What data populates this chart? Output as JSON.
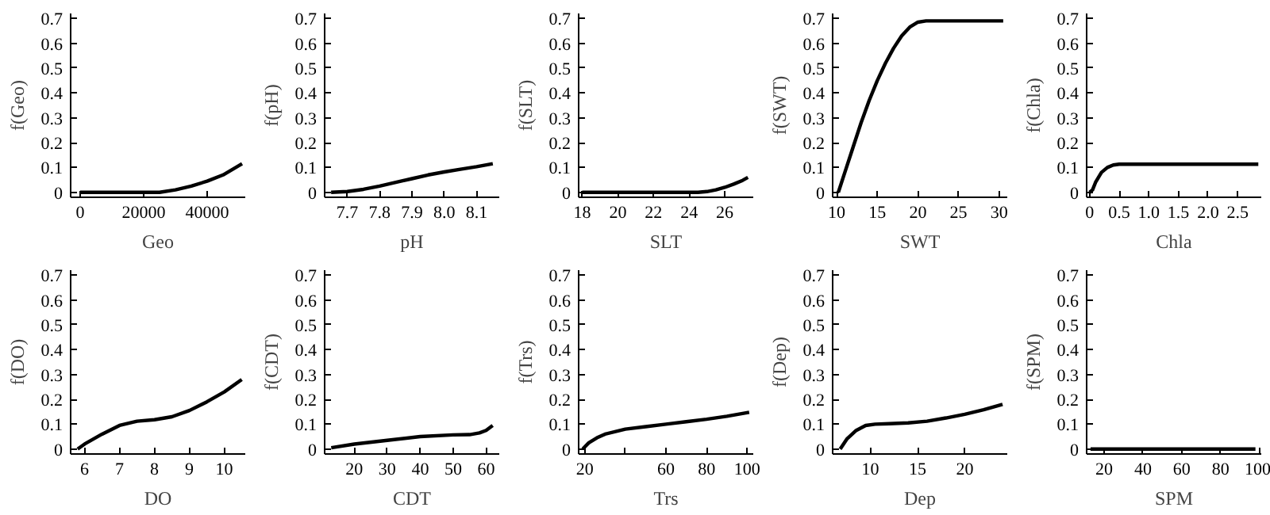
{
  "chart_data": [
    {
      "type": "line",
      "xlabel": "Geo",
      "ylabel": "f(Geo)",
      "color": "#000000",
      "xlim": [
        -3000,
        52000
      ],
      "xticks": [
        0,
        20000,
        40000
      ],
      "ylim": [
        -0.02,
        0.72
      ],
      "yticks": [
        0,
        0.1,
        0.2,
        0.3,
        0.4,
        0.5,
        0.6,
        0.7
      ],
      "x": [
        0,
        10000,
        20000,
        25000,
        30000,
        35000,
        40000,
        45000,
        51000
      ],
      "values": [
        0,
        0,
        0,
        0,
        0.01,
        0.025,
        0.045,
        0.07,
        0.115
      ]
    },
    {
      "type": "line",
      "xlabel": "pH",
      "ylabel": "f(pH)",
      "color": "#000000",
      "xlim": [
        7.63,
        8.17
      ],
      "xticks": [
        {
          "value": 7.7,
          "label": "7.7"
        },
        {
          "value": 7.8,
          "label": "7.8"
        },
        {
          "value": 7.9,
          "label": "7.9"
        },
        {
          "value": 8.0,
          "label": "8.0"
        },
        {
          "value": 8.1,
          "label": "8.1"
        }
      ],
      "ylim": [
        -0.02,
        0.72
      ],
      "yticks": [
        0,
        0.1,
        0.2,
        0.3,
        0.4,
        0.5,
        0.6,
        0.7
      ],
      "x": [
        7.65,
        7.7,
        7.75,
        7.8,
        7.85,
        7.9,
        7.95,
        8.0,
        8.05,
        8.1,
        8.15
      ],
      "values": [
        0,
        0.003,
        0.012,
        0.025,
        0.04,
        0.055,
        0.07,
        0.082,
        0.093,
        0.103,
        0.115
      ]
    },
    {
      "type": "line",
      "xlabel": "SLT",
      "ylabel": "f(SLT)",
      "color": "#000000",
      "xlim": [
        17.8,
        27.6
      ],
      "xticks": [
        18,
        20,
        22,
        24,
        26
      ],
      "ylim": [
        -0.02,
        0.72
      ],
      "yticks": [
        0,
        0.1,
        0.2,
        0.3,
        0.4,
        0.5,
        0.6,
        0.7
      ],
      "x": [
        18,
        20,
        22,
        24,
        24.5,
        25,
        25.5,
        26,
        26.5,
        27,
        27.3
      ],
      "values": [
        0,
        0,
        0,
        0,
        0,
        0.003,
        0.01,
        0.02,
        0.033,
        0.048,
        0.06
      ]
    },
    {
      "type": "line",
      "xlabel": "SWT",
      "ylabel": "f(SWT)",
      "color": "#000000",
      "xlim": [
        9.5,
        31
      ],
      "xticks": [
        10,
        15,
        20,
        25,
        30
      ],
      "ylim": [
        -0.02,
        0.72
      ],
      "yticks": [
        0,
        0.1,
        0.2,
        0.3,
        0.4,
        0.5,
        0.6,
        0.7
      ],
      "x": [
        10.2,
        11,
        12,
        13,
        14,
        15,
        16,
        17,
        18,
        19,
        20,
        21,
        22,
        25,
        30.5
      ],
      "values": [
        0,
        0.08,
        0.18,
        0.28,
        0.37,
        0.45,
        0.52,
        0.58,
        0.63,
        0.665,
        0.685,
        0.69,
        0.69,
        0.69,
        0.69
      ]
    },
    {
      "type": "line",
      "xlabel": "Chla",
      "ylabel": "f(Chla)",
      "color": "#000000",
      "xlim": [
        -0.05,
        2.9
      ],
      "xticks": [
        0,
        {
          "value": 0.5,
          "label": "0.5"
        },
        {
          "value": 1.0,
          "label": "1.0"
        },
        {
          "value": 1.5,
          "label": "1.5"
        },
        {
          "value": 2.0,
          "label": "2.0"
        },
        {
          "value": 2.5,
          "label": "2.5"
        }
      ],
      "ylim": [
        -0.02,
        0.72
      ],
      "yticks": [
        0,
        0.1,
        0.2,
        0.3,
        0.4,
        0.5,
        0.6,
        0.7
      ],
      "x": [
        0,
        0.05,
        0.1,
        0.2,
        0.3,
        0.4,
        0.5,
        1.5,
        2.85
      ],
      "values": [
        0,
        0.01,
        0.04,
        0.08,
        0.1,
        0.11,
        0.113,
        0.113,
        0.113
      ]
    },
    {
      "type": "line",
      "xlabel": "DO",
      "ylabel": "f(DO)",
      "color": "#000000",
      "xlim": [
        5.6,
        10.6
      ],
      "xticks": [
        6,
        7,
        8,
        9,
        10
      ],
      "ylim": [
        -0.02,
        0.72
      ],
      "yticks": [
        0,
        0.1,
        0.2,
        0.3,
        0.4,
        0.5,
        0.6,
        0.7
      ],
      "x": [
        5.8,
        6,
        6.5,
        7,
        7.5,
        8,
        8.5,
        9,
        9.5,
        10,
        10.5
      ],
      "values": [
        0,
        0.02,
        0.06,
        0.095,
        0.112,
        0.118,
        0.13,
        0.155,
        0.19,
        0.23,
        0.28
      ]
    },
    {
      "type": "line",
      "xlabel": "CDT",
      "ylabel": "f(CDT)",
      "color": "#000000",
      "xlim": [
        11,
        64
      ],
      "xticks": [
        20,
        30,
        40,
        50,
        60
      ],
      "ylim": [
        -0.02,
        0.72
      ],
      "yticks": [
        0,
        0.1,
        0.2,
        0.3,
        0.4,
        0.5,
        0.6,
        0.7
      ],
      "x": [
        13,
        20,
        30,
        40,
        50,
        55,
        58,
        60,
        62
      ],
      "values": [
        0.005,
        0.02,
        0.035,
        0.05,
        0.057,
        0.058,
        0.065,
        0.075,
        0.095
      ]
    },
    {
      "type": "line",
      "xlabel": "Trs",
      "ylabel": "f(Trs)",
      "color": "#000000",
      "xlim": [
        17,
        103
      ],
      "xticks": [
        20,
        {
          "value": 40,
          "label": null
        },
        60,
        80,
        100
      ],
      "ylim": [
        -0.02,
        0.72
      ],
      "yticks": [
        0,
        0.1,
        0.2,
        0.3,
        0.4,
        0.5,
        0.6,
        0.7
      ],
      "x": [
        19,
        22,
        26,
        30,
        40,
        50,
        60,
        70,
        80,
        90,
        101
      ],
      "values": [
        0,
        0.025,
        0.045,
        0.06,
        0.08,
        0.09,
        0.1,
        0.11,
        0.12,
        0.132,
        0.148
      ]
    },
    {
      "type": "line",
      "xlabel": "Dep",
      "ylabel": "f(Dep)",
      "color": "#000000",
      "xlim": [
        6,
        24.5
      ],
      "xticks": [
        10,
        15,
        20
      ],
      "ylim": [
        -0.02,
        0.72
      ],
      "yticks": [
        0,
        0.1,
        0.2,
        0.3,
        0.4,
        0.5,
        0.6,
        0.7
      ],
      "x": [
        6.8,
        7.5,
        8.5,
        9.5,
        10.5,
        12,
        14,
        16,
        18,
        20,
        22,
        24
      ],
      "values": [
        0,
        0.04,
        0.075,
        0.095,
        0.1,
        0.102,
        0.105,
        0.112,
        0.125,
        0.14,
        0.158,
        0.18
      ]
    },
    {
      "type": "line",
      "xlabel": "SPM",
      "ylabel": "f(SPM)",
      "color": "#000000",
      "xlim": [
        11,
        101
      ],
      "xticks": [
        20,
        40,
        60,
        80,
        100
      ],
      "ylim": [
        -0.02,
        0.72
      ],
      "yticks": [
        0,
        0.1,
        0.2,
        0.3,
        0.4,
        0.5,
        0.6,
        0.7
      ],
      "x": [
        13,
        98
      ],
      "values": [
        0,
        0
      ]
    }
  ]
}
